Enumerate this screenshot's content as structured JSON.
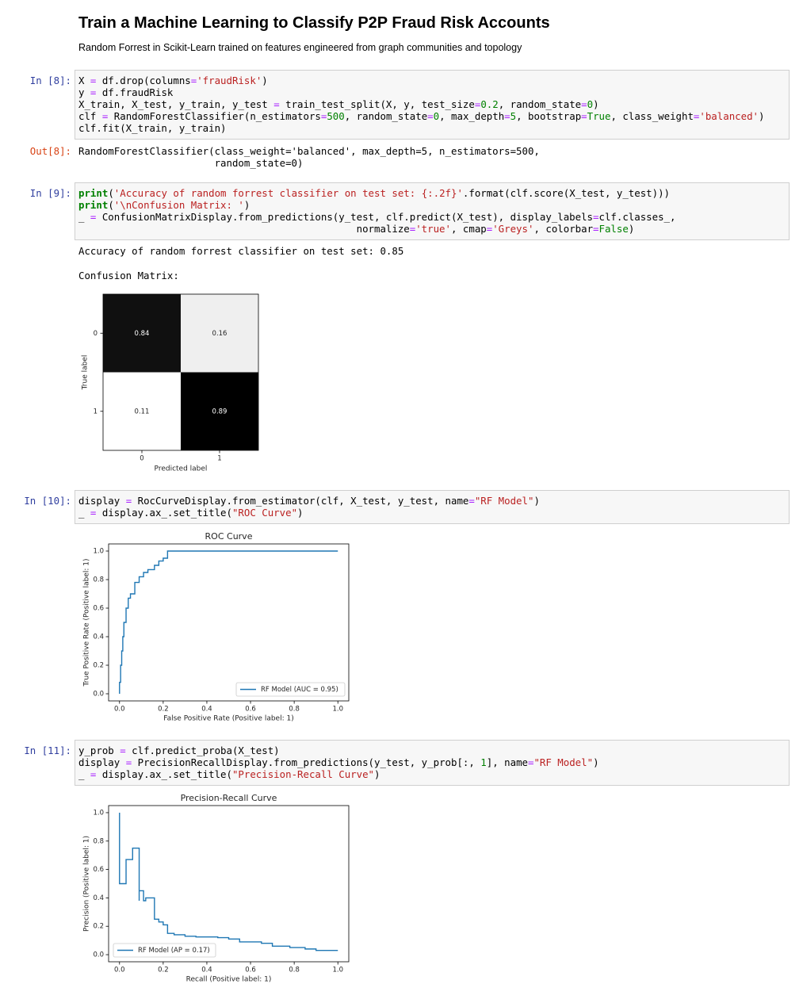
{
  "header": {
    "title": "Train a Machine Learning to Classify P2P Fraud Risk Accounts",
    "subtitle": "Random Forrest in Scikit-Learn trained on features engineered from graph communities and topology"
  },
  "cells": [
    {
      "in_prompt": "In [8]:",
      "code": [
        "X = df.drop(columns='fraudRisk')",
        "y = df.fraudRisk",
        "X_train, X_test, y_train, y_test = train_test_split(X, y, test_size=0.2, random_state=0)",
        "clf = RandomForestClassifier(n_estimators=500, random_state=0, max_depth=5, bootstrap=True, class_weight='balanced')",
        "clf.fit(X_train, y_train)"
      ],
      "out_prompt": "Out[8]:",
      "output": [
        "RandomForestClassifier(class_weight='balanced', max_depth=5, n_estimators=500,",
        "                       random_state=0)"
      ]
    },
    {
      "in_prompt": "In [9]:",
      "code": [
        "print('Accuracy of random forrest classifier on test set: {:.2f}'.format(clf.score(X_test, y_test)))",
        "print('\\nConfusion Matrix: ')",
        "_ = ConfusionMatrixDisplay.from_predictions(y_test, clf.predict(X_test), display_labels=clf.classes_,",
        "                                               normalize='true', cmap='Greys', colorbar=False)"
      ],
      "output": [
        "Accuracy of random forrest classifier on test set: 0.85",
        "Confusion Matrix:"
      ]
    },
    {
      "in_prompt": "In [10]:",
      "code": [
        "display = RocCurveDisplay.from_estimator(clf, X_test, y_test, name=\"RF Model\")",
        "_ = display.ax_.set_title(\"ROC Curve\")"
      ]
    },
    {
      "in_prompt": "In [11]:",
      "code": [
        "y_prob = clf.predict_proba(X_test)",
        "display = PrecisionRecallDisplay.from_predictions(y_test, y_prob[:, 1], name=\"RF Model\")",
        "_ = display.ax_.set_title(\"Precision-Recall Curve\")"
      ]
    }
  ],
  "chart_data": [
    {
      "type": "heatmap",
      "xlabel": "Predicted label",
      "ylabel": "True label",
      "categories": [
        "0",
        "1"
      ],
      "y_categories": [
        "0",
        "1"
      ],
      "values": [
        [
          0.84,
          0.16
        ],
        [
          0.11,
          0.89
        ]
      ]
    },
    {
      "type": "line",
      "title": "ROC Curve",
      "xlabel": "False Positive Rate (Positive label: 1)",
      "ylabel": "True Positive Rate (Positive label: 1)",
      "xlim": [
        -0.05,
        1.05
      ],
      "ylim": [
        -0.05,
        1.05
      ],
      "xticks": [
        {
          "value": 0,
          "label": "0.0"
        },
        0.2,
        0.4,
        0.6,
        0.8,
        {
          "value": 1,
          "label": "1.0"
        }
      ],
      "yticks": [
        {
          "value": 0,
          "label": "0.0"
        },
        0.2,
        0.4,
        0.6,
        0.8,
        {
          "value": 1,
          "label": "1.0"
        }
      ],
      "legend": "lower right",
      "x": [
        0,
        0,
        0.005,
        0.005,
        0.01,
        0.01,
        0.015,
        0.015,
        0.02,
        0.02,
        0.03,
        0.03,
        0.04,
        0.04,
        0.05,
        0.05,
        0.07,
        0.07,
        0.09,
        0.09,
        0.11,
        0.11,
        0.13,
        0.13,
        0.16,
        0.16,
        0.18,
        0.18,
        0.2,
        0.2,
        0.22,
        0.22,
        1.0
      ],
      "series": [
        {
          "name": "RF Model (AUC = 0.95)",
          "color": "#1f77b4",
          "values": [
            0,
            0.08,
            0.08,
            0.2,
            0.2,
            0.3,
            0.3,
            0.4,
            0.4,
            0.5,
            0.5,
            0.6,
            0.6,
            0.67,
            0.67,
            0.7,
            0.7,
            0.78,
            0.78,
            0.82,
            0.82,
            0.85,
            0.85,
            0.87,
            0.87,
            0.9,
            0.9,
            0.93,
            0.93,
            0.95,
            0.95,
            1.0,
            1.0
          ]
        }
      ]
    },
    {
      "type": "line",
      "title": "Precision-Recall Curve",
      "xlabel": "Recall (Positive label: 1)",
      "ylabel": "Precision (Positive label: 1)",
      "xlim": [
        -0.05,
        1.05
      ],
      "ylim": [
        -0.05,
        1.05
      ],
      "xticks": [
        {
          "value": 0,
          "label": "0.0"
        },
        0.2,
        0.4,
        0.6,
        0.8,
        {
          "value": 1,
          "label": "1.0"
        }
      ],
      "yticks": [
        {
          "value": 0,
          "label": "0.0"
        },
        0.2,
        0.4,
        0.6,
        0.8,
        {
          "value": 1,
          "label": "1.0"
        }
      ],
      "legend": "lower left",
      "x": [
        0,
        0,
        0.03,
        0.03,
        0.06,
        0.06,
        0.09,
        0.09,
        0.09,
        0.11,
        0.11,
        0.12,
        0.12,
        0.16,
        0.16,
        0.18,
        0.18,
        0.2,
        0.2,
        0.22,
        0.22,
        0.25,
        0.25,
        0.3,
        0.3,
        0.35,
        0.35,
        0.45,
        0.45,
        0.5,
        0.5,
        0.55,
        0.55,
        0.65,
        0.65,
        0.7,
        0.7,
        0.78,
        0.78,
        0.85,
        0.85,
        0.9,
        0.9,
        1.0
      ],
      "series": [
        {
          "name": "RF Model (AP = 0.17)",
          "color": "#1f77b4",
          "values": [
            1.0,
            0.5,
            0.5,
            0.67,
            0.67,
            0.75,
            0.75,
            0.38,
            0.45,
            0.45,
            0.38,
            0.38,
            0.4,
            0.4,
            0.25,
            0.25,
            0.23,
            0.23,
            0.21,
            0.21,
            0.15,
            0.15,
            0.14,
            0.14,
            0.13,
            0.13,
            0.125,
            0.125,
            0.12,
            0.12,
            0.11,
            0.11,
            0.09,
            0.09,
            0.08,
            0.08,
            0.06,
            0.06,
            0.05,
            0.05,
            0.04,
            0.04,
            0.03,
            0.03
          ]
        }
      ]
    }
  ]
}
